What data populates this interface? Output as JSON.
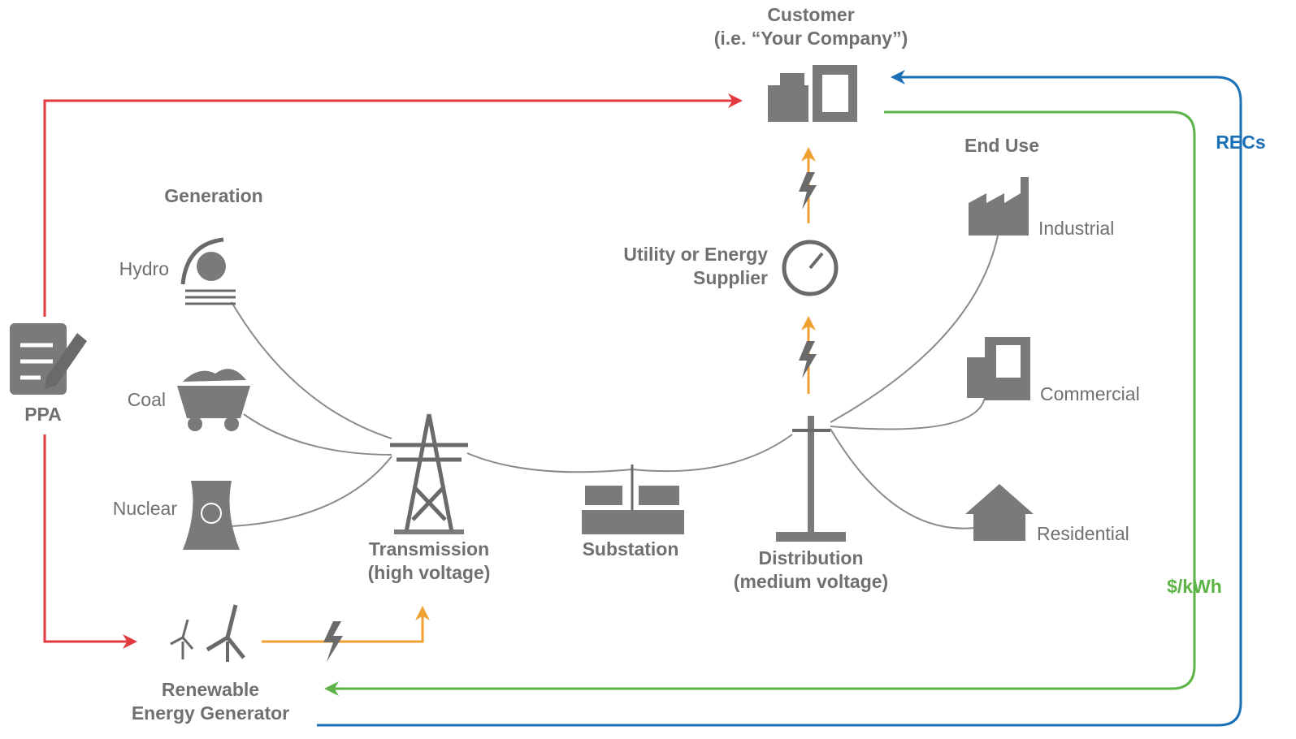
{
  "customer": {
    "lines": [
      "Customer",
      "(i.e. “Your Company”)"
    ]
  },
  "utility": {
    "lines": [
      "Utility or Energy",
      "Supplier"
    ]
  },
  "generation": {
    "title": "Generation",
    "sources": [
      "Hydro",
      "Coal",
      "Nuclear"
    ]
  },
  "end_use": {
    "title": "End Use",
    "sectors": [
      "Industrial",
      "Commercial",
      "Residential"
    ]
  },
  "grid": [
    {
      "lines": [
        "Transmission",
        "(high voltage)"
      ]
    },
    {
      "lines": [
        "Substation"
      ]
    },
    {
      "lines": [
        "Distribution",
        "(medium voltage)"
      ]
    }
  ],
  "ppa": "PPA",
  "renewable": {
    "lines": [
      "Renewable",
      "Energy Generator"
    ]
  },
  "flows": {
    "recs": "RECs",
    "payment": "$/kWh"
  }
}
